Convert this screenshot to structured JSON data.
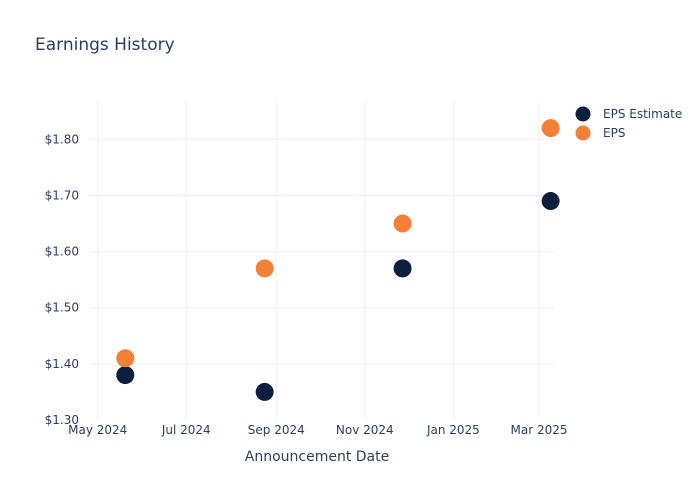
{
  "chart_data": {
    "type": "scatter",
    "title": "Earnings History",
    "xlabel": "Announcement Date",
    "ylabel": "",
    "x_ticks": [
      "May 2024",
      "Jul 2024",
      "Sep 2024",
      "Nov 2024",
      "Jan 2025",
      "Mar 2025"
    ],
    "y_ticks": [
      "$1.30",
      "$1.40",
      "$1.50",
      "$1.60",
      "$1.70",
      "$1.80"
    ],
    "ylim": [
      1.3,
      1.87
    ],
    "xlim": [
      "2024-04-25",
      "2025-03-12"
    ],
    "grid": true,
    "legend_position": "top-right",
    "series": [
      {
        "name": "EPS Estimate",
        "color": "#0b1f3f",
        "points": [
          {
            "x": "2024-05-20",
            "y": 1.38
          },
          {
            "x": "2024-08-24",
            "y": 1.35
          },
          {
            "x": "2024-11-27",
            "y": 1.57
          },
          {
            "x": "2025-03-09",
            "y": 1.69
          }
        ]
      },
      {
        "name": "EPS",
        "color": "#f47f36",
        "points": [
          {
            "x": "2024-05-20",
            "y": 1.41
          },
          {
            "x": "2024-08-24",
            "y": 1.57
          },
          {
            "x": "2024-11-27",
            "y": 1.65
          },
          {
            "x": "2025-03-09",
            "y": 1.82
          }
        ]
      }
    ]
  }
}
